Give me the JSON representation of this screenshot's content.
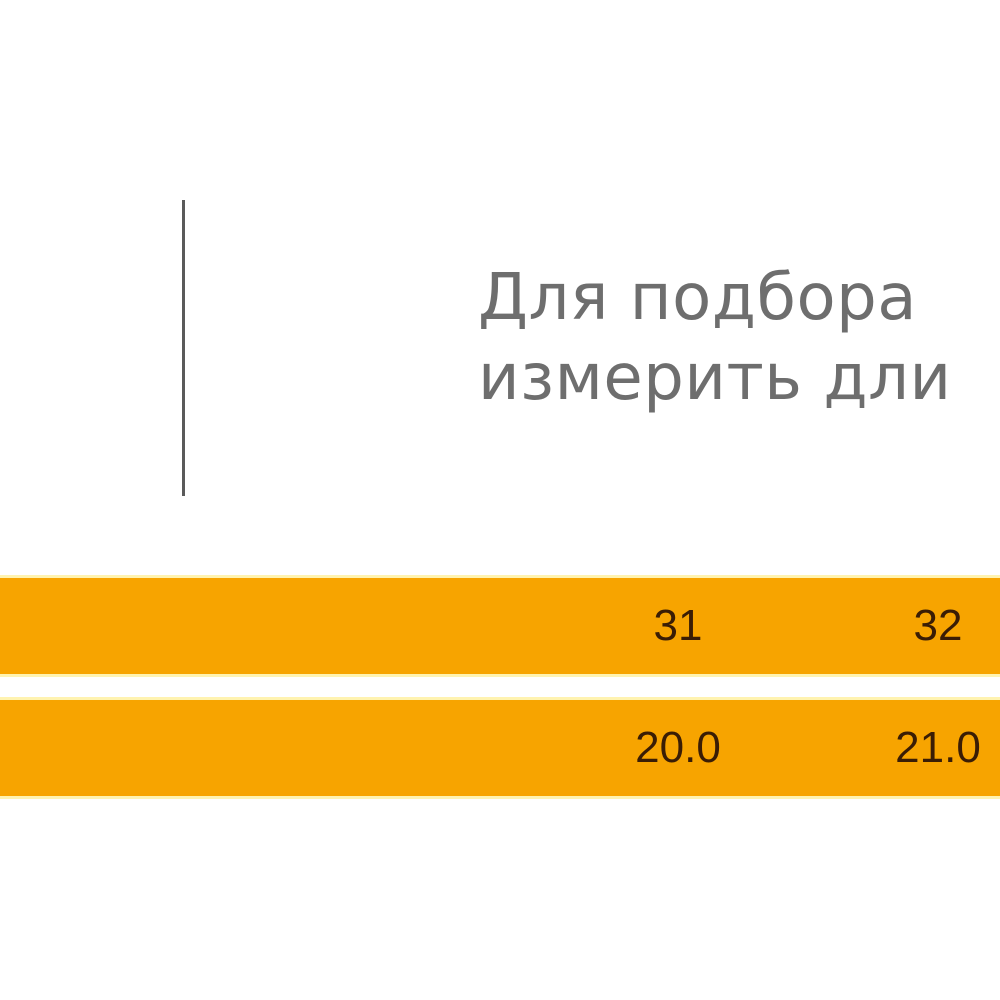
{
  "instruction": {
    "line1": "Для подбора",
    "line2": "измерить дли"
  },
  "size_table": {
    "row_color": "#f7a400",
    "separator_color": "#fff3b0",
    "text_color": "#3a1d05",
    "sizes": [
      "31",
      "32"
    ],
    "lengths": [
      "20.0",
      "21.0"
    ]
  }
}
